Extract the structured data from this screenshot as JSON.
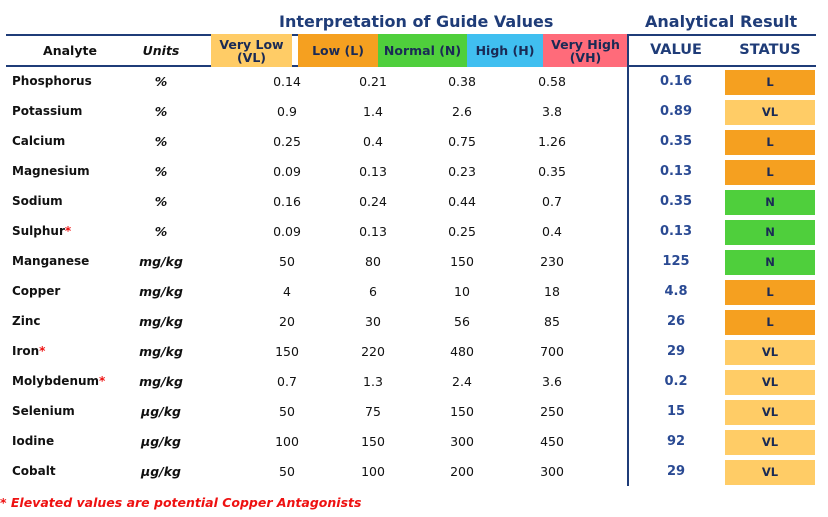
{
  "titles": {
    "guide": "Interpretation of Guide Values",
    "result": "Analytical Result"
  },
  "headers": {
    "analyte": "Analyte",
    "units": "Units",
    "very_low": "Very Low\n(VL)",
    "low": "Low (L)",
    "normal": "Normal (N)",
    "high": "High (H)",
    "very_high": "Very High\n(VH)",
    "value": "VALUE",
    "status": "STATUS"
  },
  "colors": {
    "very_low": "#ffcc66",
    "low": "#f5a020",
    "normal": "#4fcf3c",
    "high": "#40bff0",
    "very_high": "#ff6b7a",
    "status_vl": "#ffcc66",
    "status_l": "#f5a020",
    "status_n": "#4fcf3c",
    "navy": "#1f3c78"
  },
  "rows": [
    {
      "analyte": "Phosphorus",
      "star": "",
      "units": "%",
      "vl": "0.14",
      "l": "0.21",
      "n": "0.38",
      "h": "0.58",
      "value": "0.16",
      "status": "L"
    },
    {
      "analyte": "Potassium",
      "star": "",
      "units": "%",
      "vl": "0.9",
      "l": "1.4",
      "n": "2.6",
      "h": "3.8",
      "value": "0.89",
      "status": "VL"
    },
    {
      "analyte": "Calcium",
      "star": "",
      "units": "%",
      "vl": "0.25",
      "l": "0.4",
      "n": "0.75",
      "h": "1.26",
      "value": "0.35",
      "status": "L"
    },
    {
      "analyte": "Magnesium",
      "star": "",
      "units": "%",
      "vl": "0.09",
      "l": "0.13",
      "n": "0.23",
      "h": "0.35",
      "value": "0.13",
      "status": "L"
    },
    {
      "analyte": "Sodium",
      "star": "",
      "units": "%",
      "vl": "0.16",
      "l": "0.24",
      "n": "0.44",
      "h": "0.7",
      "value": "0.35",
      "status": "N"
    },
    {
      "analyte": "Sulphur",
      "star": "*",
      "units": "%",
      "vl": "0.09",
      "l": "0.13",
      "n": "0.25",
      "h": "0.4",
      "value": "0.13",
      "status": "N"
    },
    {
      "analyte": "Manganese",
      "star": "",
      "units": "mg/kg",
      "vl": "50",
      "l": "80",
      "n": "150",
      "h": "230",
      "value": "125",
      "status": "N"
    },
    {
      "analyte": "Copper",
      "star": "",
      "units": "mg/kg",
      "vl": "4",
      "l": "6",
      "n": "10",
      "h": "18",
      "value": "4.8",
      "status": "L"
    },
    {
      "analyte": "Zinc",
      "star": "",
      "units": "mg/kg",
      "vl": "20",
      "l": "30",
      "n": "56",
      "h": "85",
      "value": "26",
      "status": "L"
    },
    {
      "analyte": "Iron",
      "star": "*",
      "units": "mg/kg",
      "vl": "150",
      "l": "220",
      "n": "480",
      "h": "700",
      "value": "29",
      "status": "VL"
    },
    {
      "analyte": "Molybdenum",
      "star": "*",
      "units": "mg/kg",
      "vl": "0.7",
      "l": "1.3",
      "n": "2.4",
      "h": "3.6",
      "value": "0.2",
      "status": "VL"
    },
    {
      "analyte": "Selenium",
      "star": "",
      "units": "µg/kg",
      "vl": "50",
      "l": "75",
      "n": "150",
      "h": "250",
      "value": "15",
      "status": "VL"
    },
    {
      "analyte": "Iodine",
      "star": "",
      "units": "µg/kg",
      "vl": "100",
      "l": "150",
      "n": "300",
      "h": "450",
      "value": "92",
      "status": "VL"
    },
    {
      "analyte": "Cobalt",
      "star": "",
      "units": "µg/kg",
      "vl": "50",
      "l": "100",
      "n": "200",
      "h": "300",
      "value": "29",
      "status": "VL"
    }
  ],
  "footnote": "* Elevated values are potential Copper Antagonists"
}
